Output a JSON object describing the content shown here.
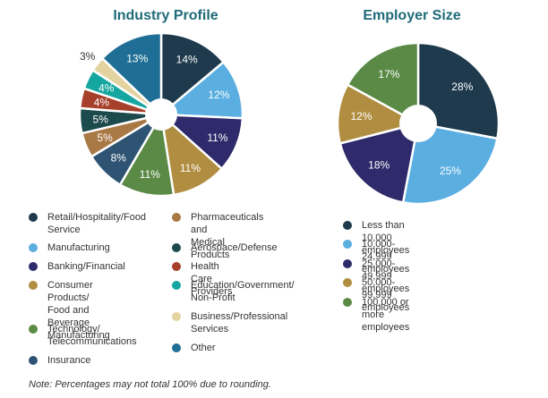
{
  "chart_data": [
    {
      "type": "pie",
      "title": "Industry Profile",
      "categories": [
        "Retail/Hospitality/Food\nService",
        "Manufacturing",
        "Banking/Financial",
        "Consumer Products/\nFood and Beverage\nManufacturing",
        "Technology/\nTelecommunications",
        "Insurance",
        "Pharmaceuticals and\nMedical Products",
        "Aerospace/Defense",
        "Health Care Providers",
        "Education/Government/\nNon-Profit",
        "Business/Professional\nServices",
        "Other"
      ],
      "values": [
        14,
        12,
        11,
        11,
        11,
        8,
        5,
        5,
        4,
        4,
        3,
        13
      ],
      "labels": [
        "14%",
        "12%",
        "11%",
        "11%",
        "11%",
        "8%",
        "5%",
        "5%",
        "4%",
        "4%",
        "3%",
        "13%"
      ],
      "colors": [
        "#1e3a4c",
        "#5aaee0",
        "#2e2a6b",
        "#b08d40",
        "#5a8a45",
        "#2f5473",
        "#a87845",
        "#1d4a4d",
        "#a6402b",
        "#16a6a0",
        "#e3d3a0",
        "#1f6e96"
      ]
    },
    {
      "type": "pie",
      "title": "Employer Size",
      "categories": [
        "Less than 10,000 employees",
        "10,000-24,999 employees",
        "25,000-49,999 employees",
        "50,000-99,999 employees",
        "100,000 or more employees"
      ],
      "values": [
        28,
        25,
        18,
        12,
        17
      ],
      "labels": [
        "28%",
        "25%",
        "18%",
        "12%",
        "17%"
      ],
      "colors": [
        "#1e3a4c",
        "#5aaee0",
        "#2e2a6b",
        "#b08d40",
        "#5a8a45"
      ]
    }
  ],
  "note": "Note: Percentages may not total 100% due to rounding."
}
